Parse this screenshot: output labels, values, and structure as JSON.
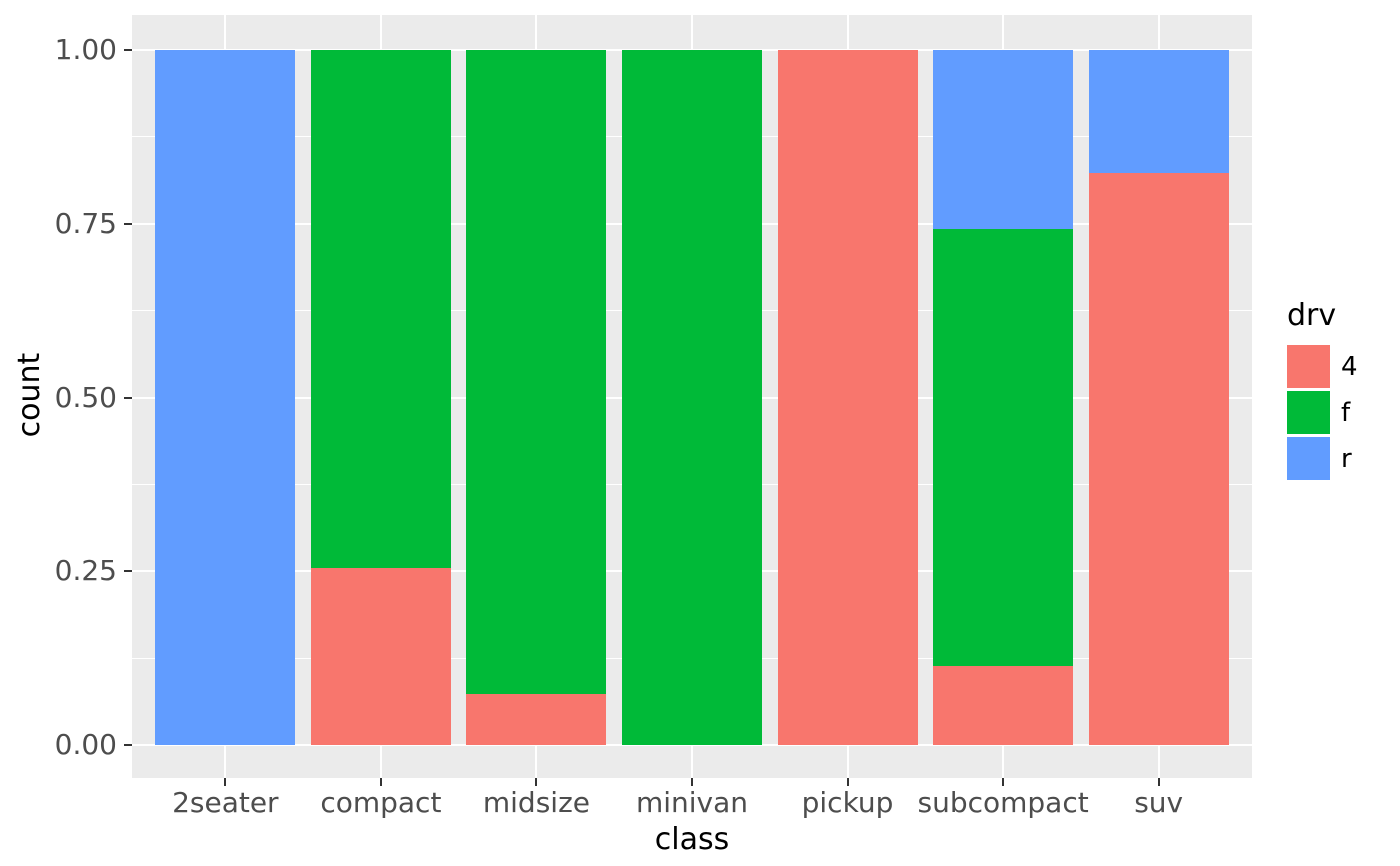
{
  "chart_data": {
    "type": "bar",
    "stacked": true,
    "position": "fill",
    "title": "",
    "xlabel": "class",
    "ylabel": "count",
    "categories": [
      "2seater",
      "compact",
      "midsize",
      "minivan",
      "pickup",
      "subcompact",
      "suv"
    ],
    "series": [
      {
        "name": "4",
        "color": "#F8766D",
        "values": [
          0,
          0.2553,
          0.0732,
          0,
          1,
          0.1143,
          0.8226
        ]
      },
      {
        "name": "f",
        "color": "#00BA38",
        "values": [
          0,
          0.7447,
          0.9268,
          1,
          0,
          0.6286,
          0
        ]
      },
      {
        "name": "r",
        "color": "#619CFF",
        "values": [
          1,
          0,
          0,
          0,
          0,
          0.2571,
          0.1774
        ]
      }
    ],
    "ylim": [
      0,
      1
    ],
    "yticks": {
      "values": [
        0,
        0.25,
        0.5,
        0.75,
        1
      ],
      "labels": [
        "0.00",
        "0.25",
        "0.50",
        "0.75",
        "1.00"
      ]
    },
    "yminor": [
      0.125,
      0.375,
      0.625,
      0.875
    ],
    "grid": "major-and-minor",
    "legend": {
      "title": "drv",
      "position": "right",
      "entries": [
        {
          "label": "4",
          "color": "#F8766D"
        },
        {
          "label": "f",
          "color": "#00BA38"
        },
        {
          "label": "r",
          "color": "#619CFF"
        }
      ]
    },
    "style": {
      "background": "#FFFFFF",
      "panel_bg": "#EBEBEB",
      "grid_color": "#FFFFFF",
      "axis_text_color": "#4D4D4D",
      "axis_title_color": "#000000",
      "tick_color": "#333333"
    }
  }
}
